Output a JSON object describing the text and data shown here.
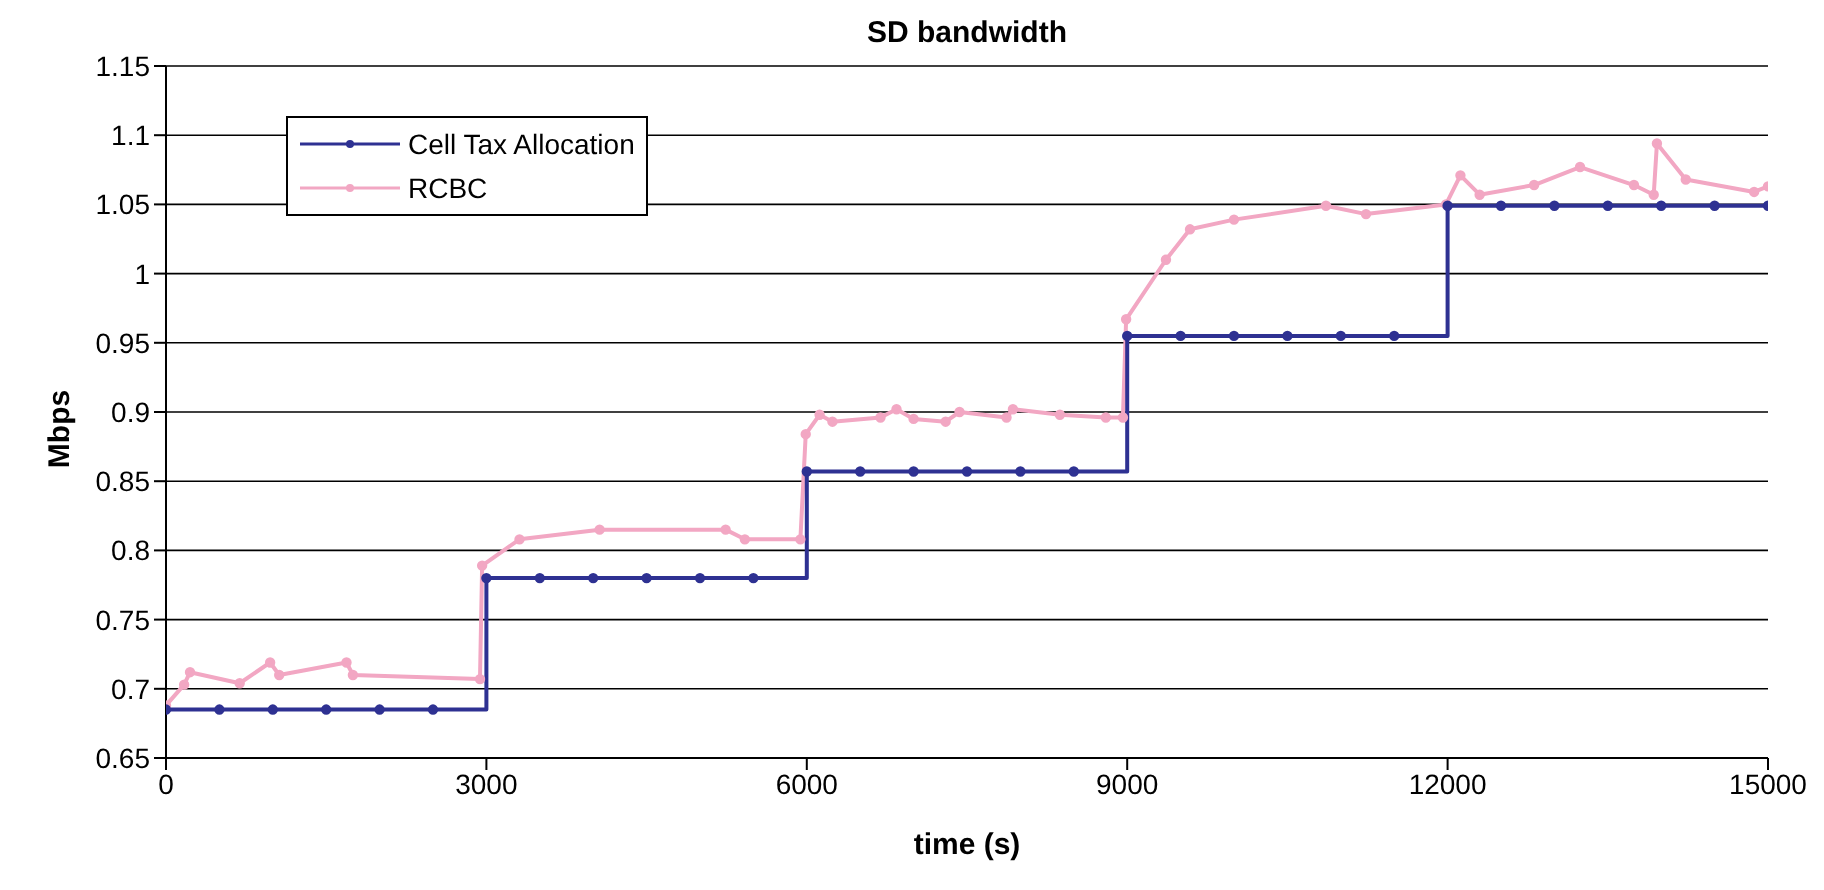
{
  "chart_data": {
    "type": "line",
    "title": "SD bandwidth",
    "xlabel": "time (s)",
    "ylabel": "Mbps",
    "xlim": [
      0,
      15000
    ],
    "xticks": [
      0,
      3000,
      6000,
      9000,
      12000,
      15000
    ],
    "ylim": [
      0.65,
      1.15
    ],
    "yticks": [
      0.65,
      0.7,
      0.75,
      0.8,
      0.85,
      0.9,
      0.95,
      1,
      1.05,
      1.1,
      1.15
    ],
    "grid": "y",
    "legend": "top left",
    "marker": "circle",
    "line_style": "solid",
    "series": [
      {
        "name": "Cell Tax Allocation",
        "type": "step",
        "color": "#2e3192",
        "x": [
          0,
          500,
          1000,
          1500,
          2000,
          2500,
          3000,
          3500,
          4000,
          4500,
          5000,
          5500,
          6000,
          6500,
          7000,
          7500,
          8000,
          8500,
          9000,
          9500,
          10000,
          10500,
          11000,
          11500,
          12000,
          12500,
          13000,
          13500,
          14000,
          14500,
          15000
        ],
        "values": [
          0.685,
          0.685,
          0.685,
          0.685,
          0.685,
          0.685,
          0.78,
          0.78,
          0.78,
          0.78,
          0.78,
          0.78,
          0.857,
          0.857,
          0.857,
          0.857,
          0.857,
          0.857,
          0.955,
          0.955,
          0.955,
          0.955,
          0.955,
          0.955,
          1.049,
          1.049,
          1.049,
          1.049,
          1.049,
          1.049,
          1.049
        ]
      },
      {
        "name": "RCBC",
        "color": "#f2a7c3",
        "x": [
          0,
          170,
          225,
          690,
          975,
          1060,
          1690,
          1750,
          2940,
          2960,
          3310,
          4060,
          5240,
          5420,
          5940,
          5990,
          6120,
          6240,
          6690,
          6840,
          7000,
          7300,
          7430,
          7870,
          7930,
          8370,
          8800,
          8960,
          8990,
          9363,
          9588,
          10000,
          10861,
          11236,
          11985,
          12120,
          12300,
          12810,
          13240,
          13745,
          13930,
          13960,
          14230,
          14870,
          15000
        ],
        "values": [
          0.688,
          0.703,
          0.712,
          0.704,
          0.719,
          0.71,
          0.719,
          0.71,
          0.707,
          0.789,
          0.808,
          0.815,
          0.815,
          0.808,
          0.808,
          0.884,
          0.898,
          0.893,
          0.896,
          0.902,
          0.895,
          0.893,
          0.9,
          0.896,
          0.902,
          0.898,
          0.896,
          0.896,
          0.967,
          1.01,
          1.032,
          1.039,
          1.049,
          1.043,
          1.05,
          1.071,
          1.057,
          1.064,
          1.077,
          1.064,
          1.057,
          1.094,
          1.068,
          1.059,
          1.063
        ]
      }
    ]
  }
}
